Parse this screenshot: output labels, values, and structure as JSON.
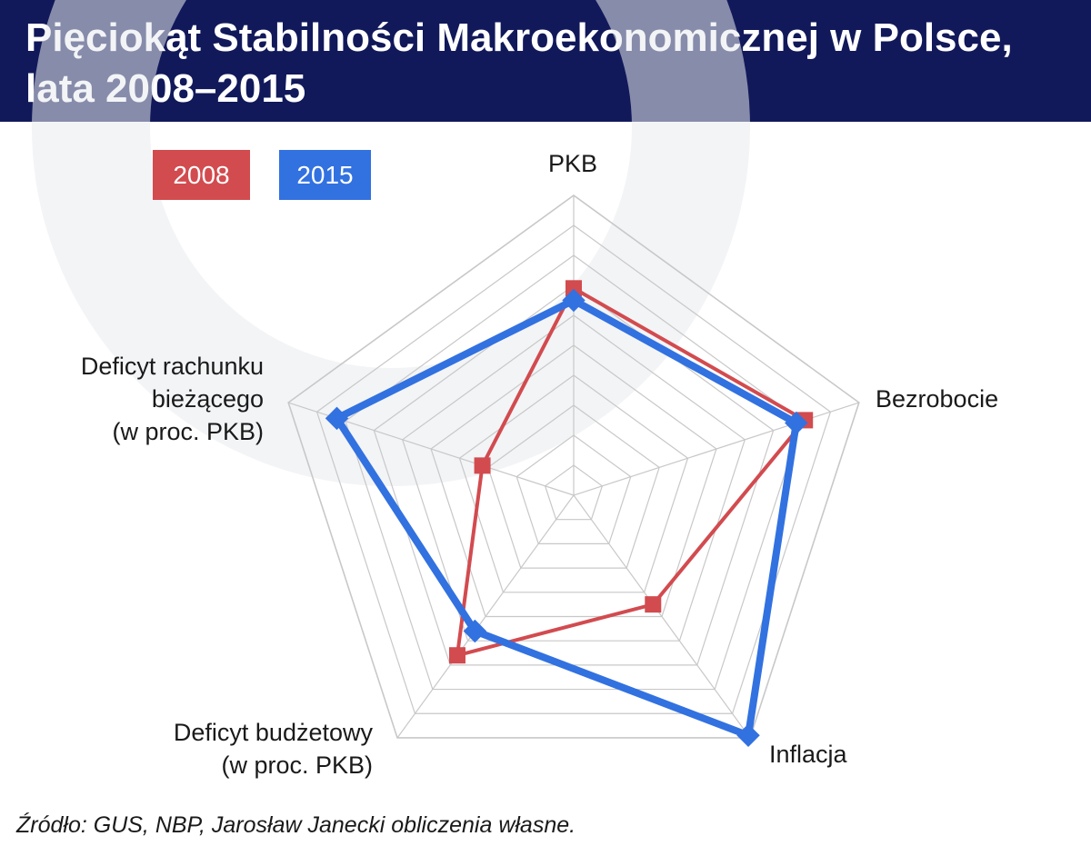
{
  "title": "Pięciokąt Stabilności Makroekonomicznej w Polsce, lata 2008–2015",
  "legend": {
    "s2008": "2008",
    "s2015": "2015"
  },
  "axis_labels": {
    "pkb": "PKB",
    "bezrobocie": "Bezrobocie",
    "inflacja": "Inflacja",
    "deficyt_budzetowy_line1": "Deficyt budżetowy",
    "deficyt_budzetowy_line2": "(w proc. PKB)",
    "deficyt_rachunku_line1": "Deficyt rachunku",
    "deficyt_rachunku_line2": "bieżącego",
    "deficyt_rachunku_line3": "(w proc. PKB)"
  },
  "source": "Źródło: GUS, NBP, Jarosław Janecki obliczenia własne.",
  "colors": {
    "header": "#11195a",
    "series_2008": "#d24b4f",
    "series_2015": "#3271e0",
    "grid": "#c8c8c8"
  },
  "chart_data": {
    "type": "radar",
    "axes": [
      "PKB",
      "Bezrobocie",
      "Inflacja",
      "Deficyt budżetowy (w proc. PKB)",
      "Deficyt rachunku bieżącego (w proc. PKB)"
    ],
    "scale_max": 10,
    "grid_levels": 10,
    "grid": true,
    "legend_position": "top-left",
    "series": [
      {
        "name": "2008",
        "values": [
          6.9,
          8.1,
          4.5,
          6.6,
          3.2
        ]
      },
      {
        "name": "2015",
        "values": [
          6.5,
          7.8,
          9.9,
          5.6,
          8.3
        ]
      }
    ]
  }
}
